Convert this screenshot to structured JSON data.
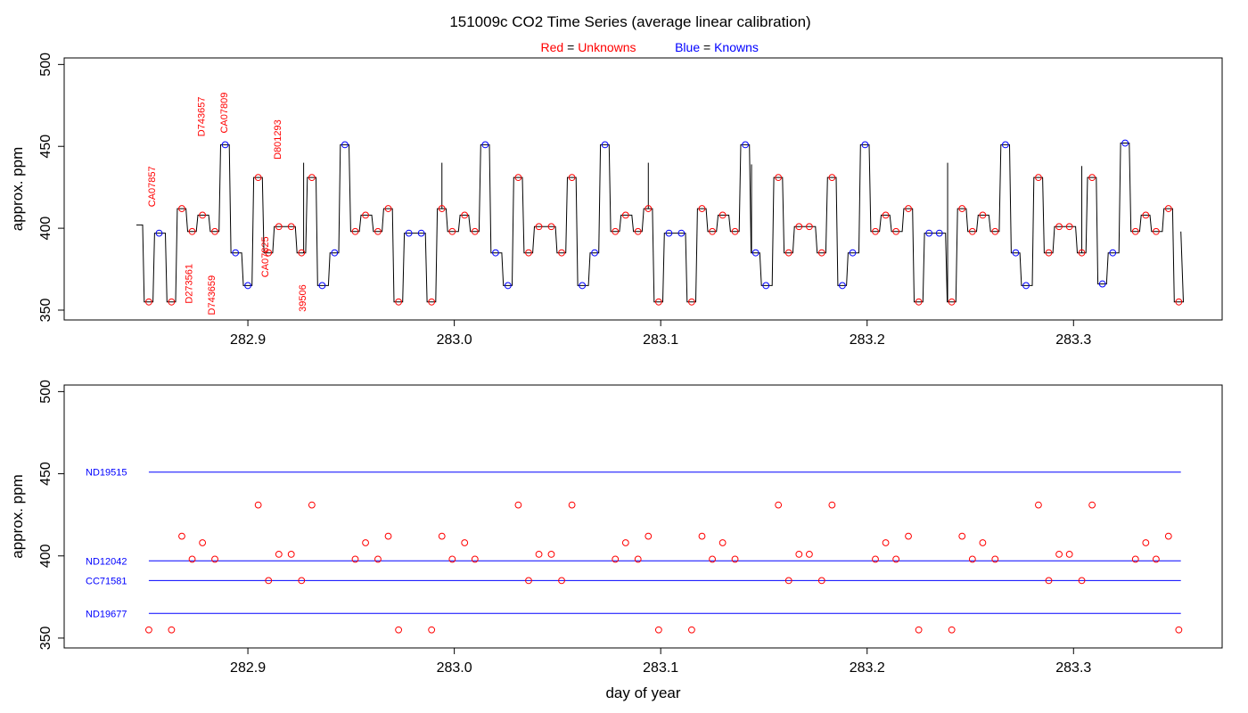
{
  "title": "151009c   CO2 Time Series (average linear calibration)",
  "legend": {
    "unknowns": {
      "prefix": "Red",
      "eq": " = ",
      "label": "Unknowns",
      "color": "#ff0000"
    },
    "knowns": {
      "prefix": "Blue",
      "eq": " = ",
      "label": "Knowns",
      "color": "#0000ff"
    }
  },
  "colors": {
    "unknown": "#ff0000",
    "known": "#0000ff",
    "trace": "#000000"
  },
  "chart_data": [
    {
      "type": "line",
      "panel": "top",
      "ylabel": "approx. ppm",
      "xlabel": "",
      "xlim": [
        282.811,
        283.372
      ],
      "ylim": [
        344,
        504
      ],
      "xticks": [
        282.9,
        283.0,
        283.1,
        283.2,
        283.3
      ],
      "xticklabels": [
        "282.9",
        "283.0",
        "283.1",
        "283.2",
        "283.3"
      ],
      "yticks": [
        350,
        400,
        450,
        500
      ],
      "yticklabels": [
        "350",
        "400",
        "450",
        "500"
      ],
      "grid": false,
      "trace_start": {
        "x": 282.846,
        "y": 402
      },
      "trace_end": {
        "x": 283.352,
        "y": 398
      },
      "spikes": [
        {
          "x": 282.927,
          "y": 440
        },
        {
          "x": 282.994,
          "y": 440
        },
        {
          "x": 283.094,
          "y": 440
        },
        {
          "x": 283.144,
          "y": 439
        },
        {
          "x": 283.239,
          "y": 440
        },
        {
          "x": 283.304,
          "y": 438
        }
      ],
      "segments": [
        {
          "t": 282.852,
          "y": 355,
          "k": false
        },
        {
          "t": 282.857,
          "y": 397,
          "k": true
        },
        {
          "t": 282.863,
          "y": 355,
          "k": false
        },
        {
          "t": 282.868,
          "y": 412,
          "k": false
        },
        {
          "t": 282.873,
          "y": 398,
          "k": false
        },
        {
          "t": 282.878,
          "y": 408,
          "k": false
        },
        {
          "t": 282.884,
          "y": 398,
          "k": false
        },
        {
          "t": 282.889,
          "y": 451,
          "k": true
        },
        {
          "t": 282.894,
          "y": 385,
          "k": true
        },
        {
          "t": 282.9,
          "y": 365,
          "k": true
        },
        {
          "t": 282.905,
          "y": 431,
          "k": false
        },
        {
          "t": 282.91,
          "y": 385,
          "k": false
        },
        {
          "t": 282.915,
          "y": 401,
          "k": false
        },
        {
          "t": 282.921,
          "y": 401,
          "k": false
        },
        {
          "t": 282.926,
          "y": 385,
          "k": false
        },
        {
          "t": 282.931,
          "y": 431,
          "k": false
        },
        {
          "t": 282.936,
          "y": 365,
          "k": true
        },
        {
          "t": 282.942,
          "y": 385,
          "k": true
        },
        {
          "t": 282.947,
          "y": 451,
          "k": true
        },
        {
          "t": 282.952,
          "y": 398,
          "k": false
        },
        {
          "t": 282.957,
          "y": 408,
          "k": false
        },
        {
          "t": 282.963,
          "y": 398,
          "k": false
        },
        {
          "t": 282.968,
          "y": 412,
          "k": false
        },
        {
          "t": 282.973,
          "y": 355,
          "k": false
        },
        {
          "t": 282.978,
          "y": 397,
          "k": true
        },
        {
          "t": 282.984,
          "y": 397,
          "k": true
        },
        {
          "t": 282.989,
          "y": 355,
          "k": false
        },
        {
          "t": 282.994,
          "y": 412,
          "k": false
        },
        {
          "t": 282.999,
          "y": 398,
          "k": false
        },
        {
          "t": 283.005,
          "y": 408,
          "k": false
        },
        {
          "t": 283.01,
          "y": 398,
          "k": false
        },
        {
          "t": 283.015,
          "y": 451,
          "k": true
        },
        {
          "t": 283.02,
          "y": 385,
          "k": true
        },
        {
          "t": 283.026,
          "y": 365,
          "k": true
        },
        {
          "t": 283.031,
          "y": 431,
          "k": false
        },
        {
          "t": 283.036,
          "y": 385,
          "k": false
        },
        {
          "t": 283.041,
          "y": 401,
          "k": false
        },
        {
          "t": 283.047,
          "y": 401,
          "k": false
        },
        {
          "t": 283.052,
          "y": 385,
          "k": false
        },
        {
          "t": 283.057,
          "y": 431,
          "k": false
        },
        {
          "t": 283.062,
          "y": 365,
          "k": true
        },
        {
          "t": 283.068,
          "y": 385,
          "k": true
        },
        {
          "t": 283.073,
          "y": 451,
          "k": true
        },
        {
          "t": 283.078,
          "y": 398,
          "k": false
        },
        {
          "t": 283.083,
          "y": 408,
          "k": false
        },
        {
          "t": 283.089,
          "y": 398,
          "k": false
        },
        {
          "t": 283.094,
          "y": 412,
          "k": false
        },
        {
          "t": 283.099,
          "y": 355,
          "k": false
        },
        {
          "t": 283.104,
          "y": 397,
          "k": true
        },
        {
          "t": 283.11,
          "y": 397,
          "k": true
        },
        {
          "t": 283.115,
          "y": 355,
          "k": false
        },
        {
          "t": 283.12,
          "y": 412,
          "k": false
        },
        {
          "t": 283.125,
          "y": 398,
          "k": false
        },
        {
          "t": 283.13,
          "y": 408,
          "k": false
        },
        {
          "t": 283.136,
          "y": 398,
          "k": false
        },
        {
          "t": 283.141,
          "y": 451,
          "k": true
        },
        {
          "t": 283.146,
          "y": 385,
          "k": true
        },
        {
          "t": 283.151,
          "y": 365,
          "k": true
        },
        {
          "t": 283.157,
          "y": 431,
          "k": false
        },
        {
          "t": 283.162,
          "y": 385,
          "k": false
        },
        {
          "t": 283.167,
          "y": 401,
          "k": false
        },
        {
          "t": 283.172,
          "y": 401,
          "k": false
        },
        {
          "t": 283.178,
          "y": 385,
          "k": false
        },
        {
          "t": 283.183,
          "y": 431,
          "k": false
        },
        {
          "t": 283.188,
          "y": 365,
          "k": true
        },
        {
          "t": 283.193,
          "y": 385,
          "k": true
        },
        {
          "t": 283.199,
          "y": 451,
          "k": true
        },
        {
          "t": 283.204,
          "y": 398,
          "k": false
        },
        {
          "t": 283.209,
          "y": 408,
          "k": false
        },
        {
          "t": 283.214,
          "y": 398,
          "k": false
        },
        {
          "t": 283.22,
          "y": 412,
          "k": false
        },
        {
          "t": 283.225,
          "y": 355,
          "k": false
        },
        {
          "t": 283.23,
          "y": 397,
          "k": true
        },
        {
          "t": 283.235,
          "y": 397,
          "k": true
        },
        {
          "t": 283.241,
          "y": 355,
          "k": false
        },
        {
          "t": 283.246,
          "y": 412,
          "k": false
        },
        {
          "t": 283.251,
          "y": 398,
          "k": false
        },
        {
          "t": 283.256,
          "y": 408,
          "k": false
        },
        {
          "t": 283.262,
          "y": 398,
          "k": false
        },
        {
          "t": 283.267,
          "y": 451,
          "k": true
        },
        {
          "t": 283.272,
          "y": 385,
          "k": true
        },
        {
          "t": 283.277,
          "y": 365,
          "k": true
        },
        {
          "t": 283.283,
          "y": 431,
          "k": false
        },
        {
          "t": 283.288,
          "y": 385,
          "k": false
        },
        {
          "t": 283.293,
          "y": 401,
          "k": false
        },
        {
          "t": 283.298,
          "y": 401,
          "k": false
        },
        {
          "t": 283.304,
          "y": 385,
          "k": false
        },
        {
          "t": 283.309,
          "y": 431,
          "k": false
        },
        {
          "t": 283.314,
          "y": 366,
          "k": true
        },
        {
          "t": 283.319,
          "y": 385,
          "k": true
        },
        {
          "t": 283.325,
          "y": 452,
          "k": true
        },
        {
          "t": 283.33,
          "y": 398,
          "k": false
        },
        {
          "t": 283.335,
          "y": 408,
          "k": false
        },
        {
          "t": 283.34,
          "y": 398,
          "k": false
        },
        {
          "t": 283.346,
          "y": 412,
          "k": false
        },
        {
          "t": 283.351,
          "y": 355,
          "k": false
        }
      ],
      "annotations": [
        {
          "text": "CA07857",
          "x": 282.855,
          "y": 413
        },
        {
          "text": "D273561",
          "x": 282.873,
          "y": 354
        },
        {
          "text": "D743657",
          "x": 282.879,
          "y": 456
        },
        {
          "text": "D743659",
          "x": 282.884,
          "y": 347
        },
        {
          "text": "CA07809",
          "x": 282.89,
          "y": 458
        },
        {
          "text": "CA07825",
          "x": 282.91,
          "y": 370
        },
        {
          "text": "D801293",
          "x": 282.916,
          "y": 442
        },
        {
          "text": "39506",
          "x": 282.928,
          "y": 349
        }
      ]
    },
    {
      "type": "scatter",
      "panel": "bottom",
      "ylabel": "approx. ppm",
      "xlabel": "day of year",
      "xlim": [
        282.811,
        283.372
      ],
      "ylim": [
        344,
        504
      ],
      "xticks": [
        282.9,
        283.0,
        283.1,
        283.2,
        283.3
      ],
      "xticklabels": [
        "282.9",
        "283.0",
        "283.1",
        "283.2",
        "283.3"
      ],
      "yticks": [
        350,
        400,
        450,
        500
      ],
      "yticklabels": [
        "350",
        "400",
        "450",
        "500"
      ],
      "grid": false,
      "reference_lines": [
        {
          "name": "ND19515",
          "y": 451,
          "x0": 282.852,
          "x1": 283.352
        },
        {
          "name": "ND12042",
          "y": 397,
          "x0": 282.852,
          "x1": 283.352
        },
        {
          "name": "CC71581",
          "y": 385,
          "x0": 282.852,
          "x1": 283.352
        },
        {
          "name": "ND19677",
          "y": 365,
          "x0": 282.852,
          "x1": 283.352
        }
      ]
    }
  ]
}
